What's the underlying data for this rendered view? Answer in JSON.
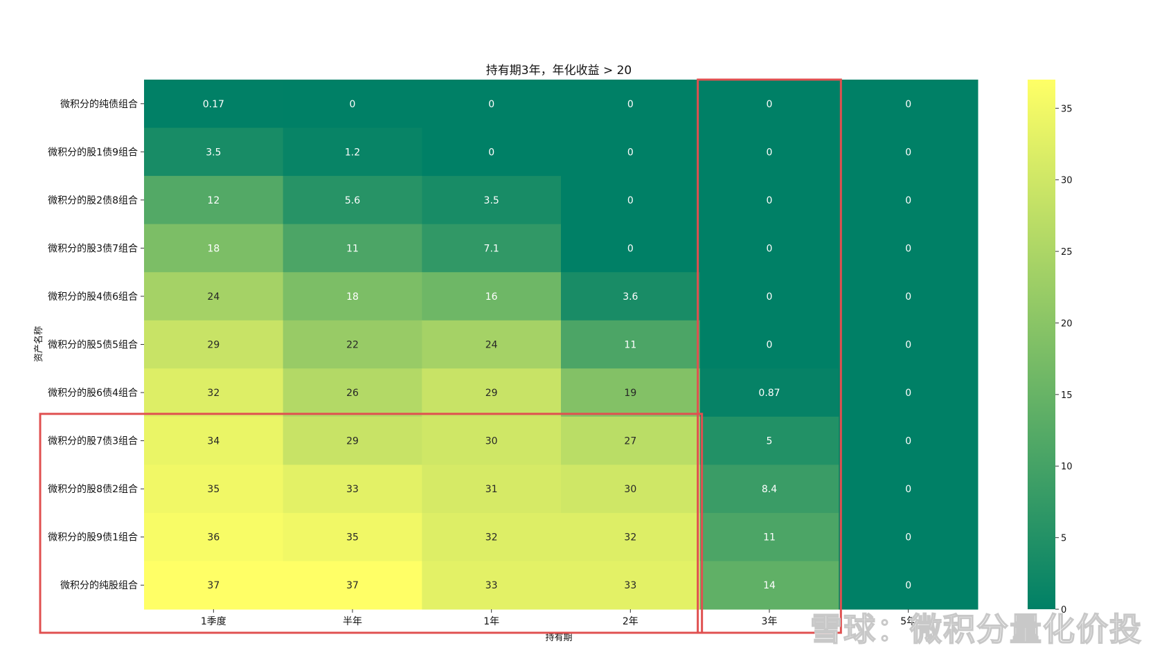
{
  "chart_data": {
    "type": "heatmap",
    "title": "持有期3年，年化收益 > 20",
    "xlabel": "持有期",
    "ylabel": "资产名称",
    "x_categories": [
      "1季度",
      "半年",
      "1年",
      "2年",
      "3年",
      "5年"
    ],
    "y_categories": [
      "微积分的纯债组合",
      "微积分的股1债9组合",
      "微积分的股2债8组合",
      "微积分的股3债7组合",
      "微积分的股4债6组合",
      "微积分的股5债5组合",
      "微积分的股6债4组合",
      "微积分的股7债3组合",
      "微积分的股8债2组合",
      "微积分的股9债1组合",
      "微积分的纯股组合"
    ],
    "values": [
      [
        0.17,
        0,
        0,
        0,
        0,
        0
      ],
      [
        3.5,
        1.2,
        0,
        0,
        0,
        0
      ],
      [
        12,
        5.6,
        3.5,
        0,
        0,
        0
      ],
      [
        18,
        11,
        7.1,
        0,
        0,
        0
      ],
      [
        24,
        18,
        16,
        3.6,
        0,
        0
      ],
      [
        29,
        22,
        24,
        11,
        0,
        0
      ],
      [
        32,
        26,
        29,
        19,
        0.87,
        0
      ],
      [
        34,
        29,
        30,
        27,
        5,
        0
      ],
      [
        35,
        33,
        31,
        30,
        8.4,
        0
      ],
      [
        36,
        35,
        32,
        32,
        11,
        0
      ],
      [
        37,
        37,
        33,
        33,
        14,
        0
      ]
    ],
    "colormap": "summer",
    "colorbar": {
      "min": 0,
      "max": 37,
      "ticks": [
        0,
        5,
        10,
        15,
        20,
        25,
        30,
        35
      ]
    },
    "annotations": [
      {
        "type": "highlight-box",
        "color": "#e05050",
        "x_range": [
          "3年",
          "3年"
        ],
        "y_range": [
          "微积分的纯债组合",
          "微积分的纯股组合"
        ]
      },
      {
        "type": "highlight-box",
        "color": "#e05050",
        "x_range": [
          "1季度",
          "2年"
        ],
        "y_range": [
          "微积分的股7债3组合",
          "微积分的纯股组合"
        ]
      }
    ]
  },
  "watermark": "雪球：微积分量化价投"
}
